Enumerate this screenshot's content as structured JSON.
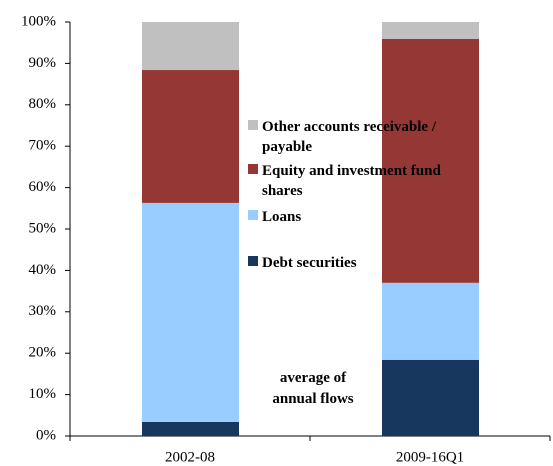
{
  "chart_data": {
    "type": "stacked_bar",
    "categories": [
      "2002-08",
      "2009-16Q1"
    ],
    "series": [
      {
        "name": "Debt securities",
        "color": "#17375e",
        "values": [
          3.4,
          18.4
        ]
      },
      {
        "name": "Loans",
        "color": "#99ccff",
        "values": [
          52.9,
          18.6
        ]
      },
      {
        "name": "Equity and investment fund shares",
        "color": "#953735",
        "values": [
          32.1,
          58.9
        ]
      },
      {
        "name": "Other accounts receivable / payable",
        "color": "#c0c0c0",
        "values": [
          11.6,
          4.1
        ]
      }
    ],
    "ylim": [
      0,
      100
    ],
    "yticks": [
      {
        "value": 0,
        "label": "0%"
      },
      {
        "value": 10,
        "label": "10%"
      },
      {
        "value": 20,
        "label": "20%"
      },
      {
        "value": 30,
        "label": "30%"
      },
      {
        "value": 40,
        "label": "40%"
      },
      {
        "value": 50,
        "label": "50%"
      },
      {
        "value": 60,
        "label": "60%"
      },
      {
        "value": 70,
        "label": "70%"
      },
      {
        "value": 80,
        "label": "80%"
      },
      {
        "value": 90,
        "label": "90%"
      },
      {
        "value": 100,
        "label": "100%"
      }
    ],
    "annotation": "average of annual flows",
    "grid": false
  }
}
